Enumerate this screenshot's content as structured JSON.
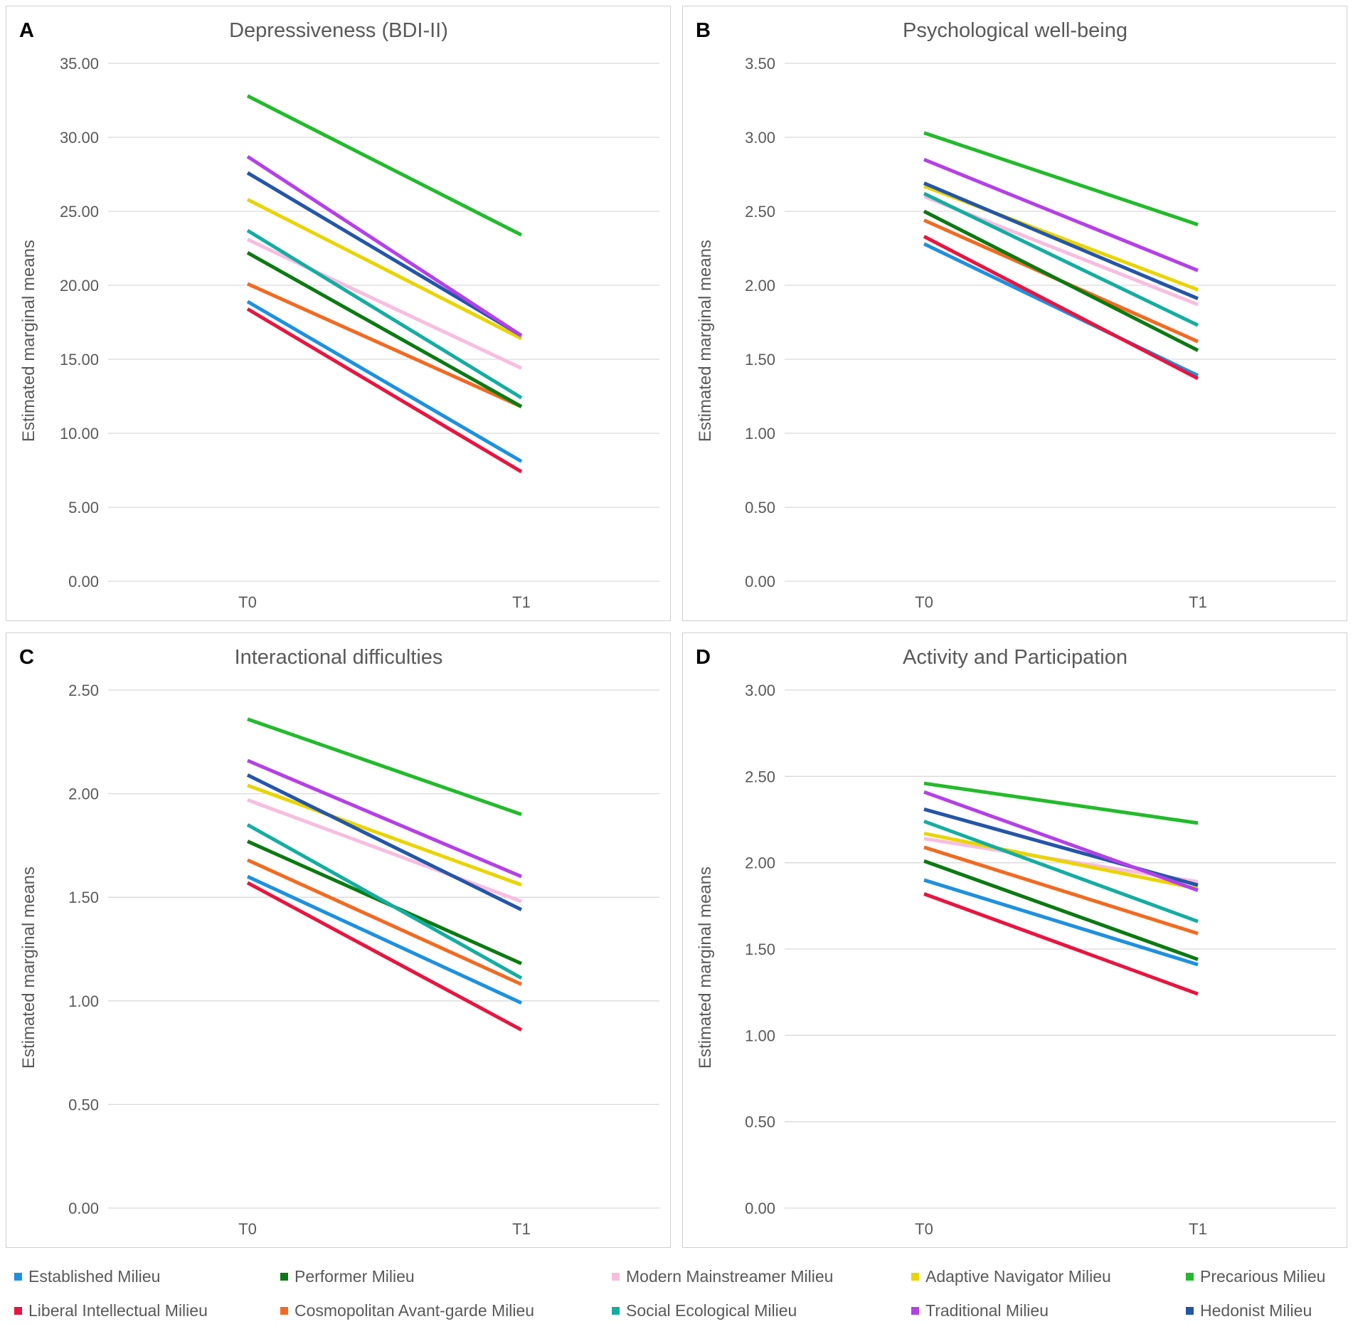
{
  "chart_data": [
    {
      "type": "line",
      "panel_letter": "A",
      "title": "Depressiveness (BDI-II)",
      "ylabel": "Estimated marginal means",
      "xlabel": "",
      "categories": [
        "T0",
        "T1"
      ],
      "ylim": [
        0,
        35
      ],
      "yticks": [
        "0.00",
        "5.00",
        "10.00",
        "15.00",
        "20.00",
        "25.00",
        "30.00",
        "35.00"
      ],
      "series": [
        {
          "name": "Precarious Milieu",
          "values": [
            32.8,
            23.4
          ]
        },
        {
          "name": "Traditional Milieu",
          "values": [
            28.7,
            16.6
          ]
        },
        {
          "name": "Hedonist Milieu",
          "values": [
            27.6,
            16.6
          ]
        },
        {
          "name": "Adaptive Navigator Milieu",
          "values": [
            25.8,
            16.4
          ]
        },
        {
          "name": "Social Ecological Milieu",
          "values": [
            23.7,
            12.4
          ]
        },
        {
          "name": "Modern Mainstreamer Milieu",
          "values": [
            23.1,
            14.4
          ]
        },
        {
          "name": "Performer Milieu",
          "values": [
            22.2,
            11.8
          ]
        },
        {
          "name": "Cosmopolitan Avant-garde Milieu",
          "values": [
            20.1,
            11.8
          ]
        },
        {
          "name": "Established Milieu",
          "values": [
            18.9,
            8.1
          ]
        },
        {
          "name": "Liberal Intellectual Milieu",
          "values": [
            18.4,
            7.4
          ]
        }
      ]
    },
    {
      "type": "line",
      "panel_letter": "B",
      "title": "Psychological well-being",
      "ylabel": "Estimated marginal means",
      "xlabel": "",
      "categories": [
        "T0",
        "T1"
      ],
      "ylim": [
        0,
        3.5
      ],
      "yticks": [
        "0.00",
        "0.50",
        "1.00",
        "1.50",
        "2.00",
        "2.50",
        "3.00",
        "3.50"
      ],
      "series": [
        {
          "name": "Precarious Milieu",
          "values": [
            3.03,
            2.41
          ]
        },
        {
          "name": "Traditional Milieu",
          "values": [
            2.85,
            2.1
          ]
        },
        {
          "name": "Hedonist Milieu",
          "values": [
            2.69,
            1.91
          ]
        },
        {
          "name": "Adaptive Navigator Milieu",
          "values": [
            2.67,
            1.97
          ]
        },
        {
          "name": "Social Ecological Milieu",
          "values": [
            2.62,
            1.73
          ]
        },
        {
          "name": "Modern Mainstreamer Milieu",
          "values": [
            2.6,
            1.87
          ]
        },
        {
          "name": "Performer Milieu",
          "values": [
            2.5,
            1.56
          ]
        },
        {
          "name": "Cosmopolitan Avant-garde Milieu",
          "values": [
            2.44,
            1.62
          ]
        },
        {
          "name": "Liberal Intellectual Milieu",
          "values": [
            2.33,
            1.37
          ]
        },
        {
          "name": "Established Milieu",
          "values": [
            2.28,
            1.39
          ]
        }
      ]
    },
    {
      "type": "line",
      "panel_letter": "C",
      "title": "Interactional difficulties",
      "ylabel": "Estimated marginal means",
      "xlabel": "",
      "categories": [
        "T0",
        "T1"
      ],
      "ylim": [
        0,
        2.5
      ],
      "yticks": [
        "0.00",
        "0.50",
        "1.00",
        "1.50",
        "2.00",
        "2.50"
      ],
      "series": [
        {
          "name": "Precarious Milieu",
          "values": [
            2.36,
            1.9
          ]
        },
        {
          "name": "Traditional Milieu",
          "values": [
            2.16,
            1.6
          ]
        },
        {
          "name": "Hedonist Milieu",
          "values": [
            2.09,
            1.44
          ]
        },
        {
          "name": "Adaptive Navigator Milieu",
          "values": [
            2.04,
            1.56
          ]
        },
        {
          "name": "Modern Mainstreamer Milieu",
          "values": [
            1.97,
            1.48
          ]
        },
        {
          "name": "Social Ecological Milieu",
          "values": [
            1.85,
            1.11
          ]
        },
        {
          "name": "Performer Milieu",
          "values": [
            1.77,
            1.18
          ]
        },
        {
          "name": "Cosmopolitan Avant-garde Milieu",
          "values": [
            1.68,
            1.08
          ]
        },
        {
          "name": "Established Milieu",
          "values": [
            1.6,
            0.99
          ]
        },
        {
          "name": "Liberal Intellectual Milieu",
          "values": [
            1.57,
            0.86
          ]
        }
      ]
    },
    {
      "type": "line",
      "panel_letter": "D",
      "title": "Activity and Participation",
      "ylabel": "Estimated marginal means",
      "xlabel": "",
      "categories": [
        "T0",
        "T1"
      ],
      "ylim": [
        0,
        3
      ],
      "yticks": [
        "0.00",
        "0.50",
        "1.00",
        "1.50",
        "2.00",
        "2.50",
        "3.00"
      ],
      "series": [
        {
          "name": "Precarious Milieu",
          "values": [
            2.46,
            2.23
          ]
        },
        {
          "name": "Traditional Milieu",
          "values": [
            2.41,
            1.84
          ]
        },
        {
          "name": "Hedonist Milieu",
          "values": [
            2.31,
            1.87
          ]
        },
        {
          "name": "Social Ecological Milieu",
          "values": [
            2.24,
            1.66
          ]
        },
        {
          "name": "Adaptive Navigator Milieu",
          "values": [
            2.17,
            1.85
          ]
        },
        {
          "name": "Modern Mainstreamer Milieu",
          "values": [
            2.14,
            1.89
          ]
        },
        {
          "name": "Cosmopolitan Avant-garde Milieu",
          "values": [
            2.09,
            1.59
          ]
        },
        {
          "name": "Performer Milieu",
          "values": [
            2.01,
            1.44
          ]
        },
        {
          "name": "Established Milieu",
          "values": [
            1.9,
            1.41
          ]
        },
        {
          "name": "Liberal Intellectual Milieu",
          "values": [
            1.82,
            1.24
          ]
        }
      ]
    }
  ],
  "legend": [
    {
      "name": "Established Milieu",
      "color": "#1e90e0"
    },
    {
      "name": "Performer Milieu",
      "color": "#0b7a12"
    },
    {
      "name": "Modern Mainstreamer Milieu",
      "color": "#f7bde0"
    },
    {
      "name": "Adaptive Navigator Milieu",
      "color": "#ead400"
    },
    {
      "name": "Precarious Milieu",
      "color": "#22bb2b"
    },
    {
      "name": "Liberal Intellectual Milieu",
      "color": "#e8153f"
    },
    {
      "name": "Cosmopolitan Avant-garde Milieu",
      "color": "#f26a22"
    },
    {
      "name": "Social Ecological Milieu",
      "color": "#14ada1"
    },
    {
      "name": "Traditional Milieu",
      "color": "#b440e8"
    },
    {
      "name": "Hedonist Milieu",
      "color": "#2356a8"
    }
  ]
}
